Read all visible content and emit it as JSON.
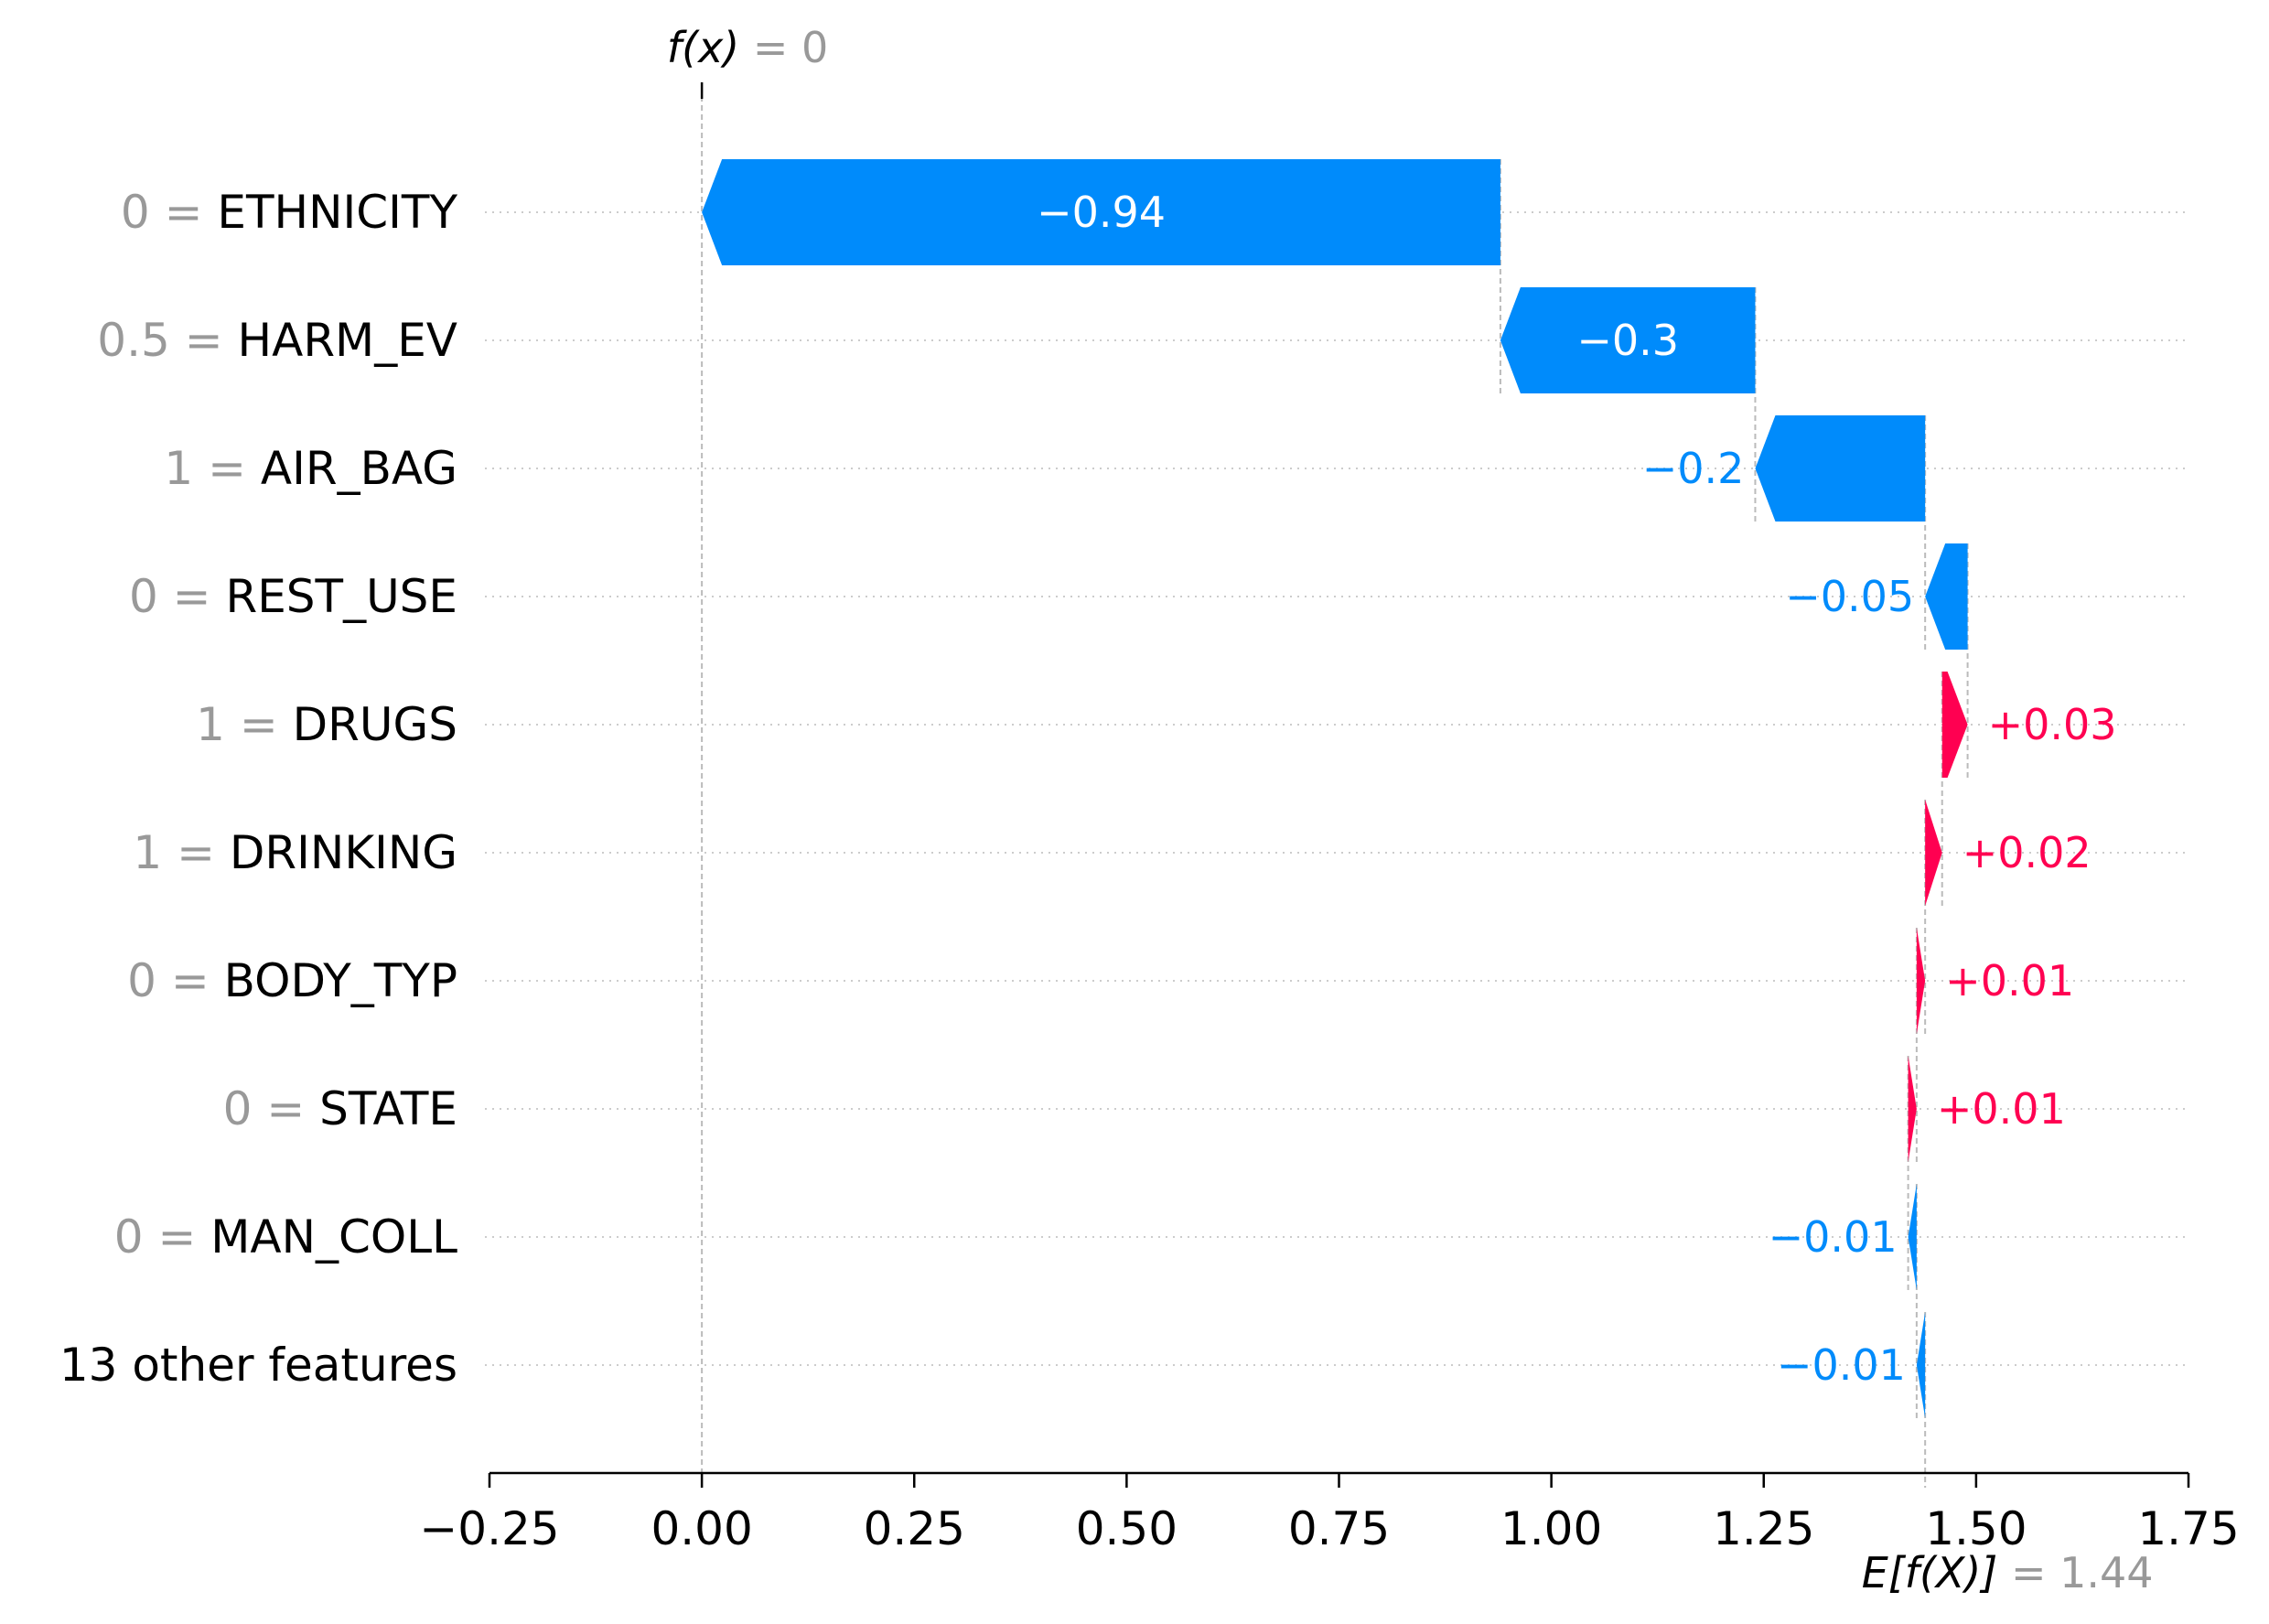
{
  "chart_data": {
    "type": "waterfall",
    "fx_label": "f(x)",
    "fx_value": "0",
    "ex_label": "E[f(X)]",
    "ex_value": "1.44",
    "base_value": 1.44,
    "final_value": 0,
    "xlim": [
      -0.25,
      1.75
    ],
    "x_ticks": [
      -0.25,
      0.0,
      0.25,
      0.5,
      0.75,
      1.0,
      1.25,
      1.5,
      1.75
    ],
    "x_tick_labels": [
      "−0.25",
      "0.00",
      "0.25",
      "0.50",
      "0.75",
      "1.00",
      "1.25",
      "1.50",
      "1.75"
    ],
    "features": [
      {
        "value": "0",
        "name": "ETHNICITY",
        "contribution": -0.94,
        "label": "−0.94"
      },
      {
        "value": "0.5",
        "name": "HARM_EV",
        "contribution": -0.3,
        "label": "−0.3"
      },
      {
        "value": "1",
        "name": "AIR_BAG",
        "contribution": -0.2,
        "label": "−0.2"
      },
      {
        "value": "0",
        "name": "REST_USE",
        "contribution": -0.05,
        "label": "−0.05"
      },
      {
        "value": "1",
        "name": "DRUGS",
        "contribution": 0.03,
        "label": "+0.03"
      },
      {
        "value": "1",
        "name": "DRINKING",
        "contribution": 0.02,
        "label": "+0.02"
      },
      {
        "value": "0",
        "name": "BODY_TYP",
        "contribution": 0.01,
        "label": "+0.01"
      },
      {
        "value": "0",
        "name": "STATE",
        "contribution": 0.01,
        "label": "+0.01"
      },
      {
        "value": "0",
        "name": "MAN_COLL",
        "contribution": -0.01,
        "label": "−0.01"
      },
      {
        "value": "",
        "name": "13 other features",
        "contribution": -0.01,
        "label": "−0.01"
      }
    ],
    "colors": {
      "negative": "#008bfb",
      "positive": "#ff0051",
      "value_text": "#999999",
      "name_text": "#000000",
      "grid": "#cccccc",
      "axis": "#000000"
    },
    "grid": true
  }
}
